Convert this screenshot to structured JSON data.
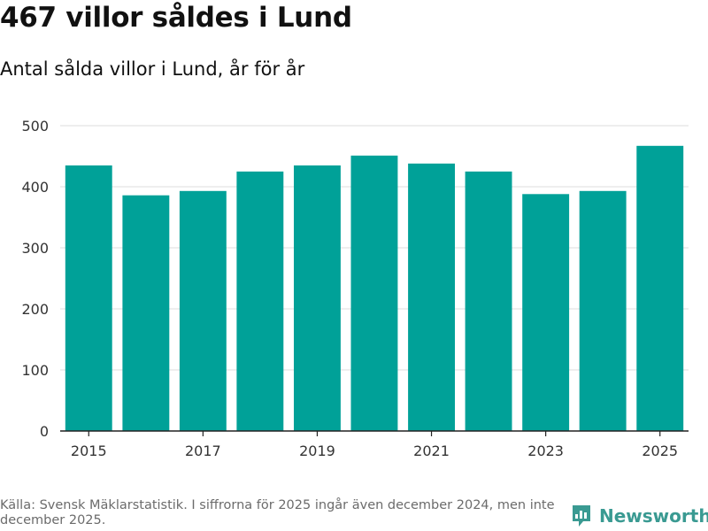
{
  "title": "467 villor såldes i Lund",
  "subtitle": "Antal sålda villor i Lund, år för år",
  "footer": {
    "source": "Källa: Svensk Mäklarstatistik. I siffrorna för 2025 ingår även december 2024, men inte december 2025.",
    "brand": "Newsworthy"
  },
  "colors": {
    "bar": "#00a198",
    "grid": "#dcdcdc",
    "axis": "#222222",
    "brand": "#3a9a92"
  },
  "chart_data": {
    "type": "bar",
    "title": "467 villor såldes i Lund",
    "subtitle": "Antal sålda villor i Lund, år för år",
    "xlabel": "",
    "ylabel": "",
    "categories": [
      "2015",
      "2016",
      "2017",
      "2018",
      "2019",
      "2020",
      "2021",
      "2022",
      "2023",
      "2024",
      "2025"
    ],
    "values": [
      435,
      386,
      393,
      425,
      435,
      451,
      438,
      425,
      388,
      393,
      467
    ],
    "x_tick_labels": [
      "2015",
      "2017",
      "2019",
      "2021",
      "2023",
      "2025"
    ],
    "y_ticks": [
      0,
      100,
      200,
      300,
      400,
      500
    ],
    "ylim": [
      0,
      500
    ],
    "grid": true
  }
}
